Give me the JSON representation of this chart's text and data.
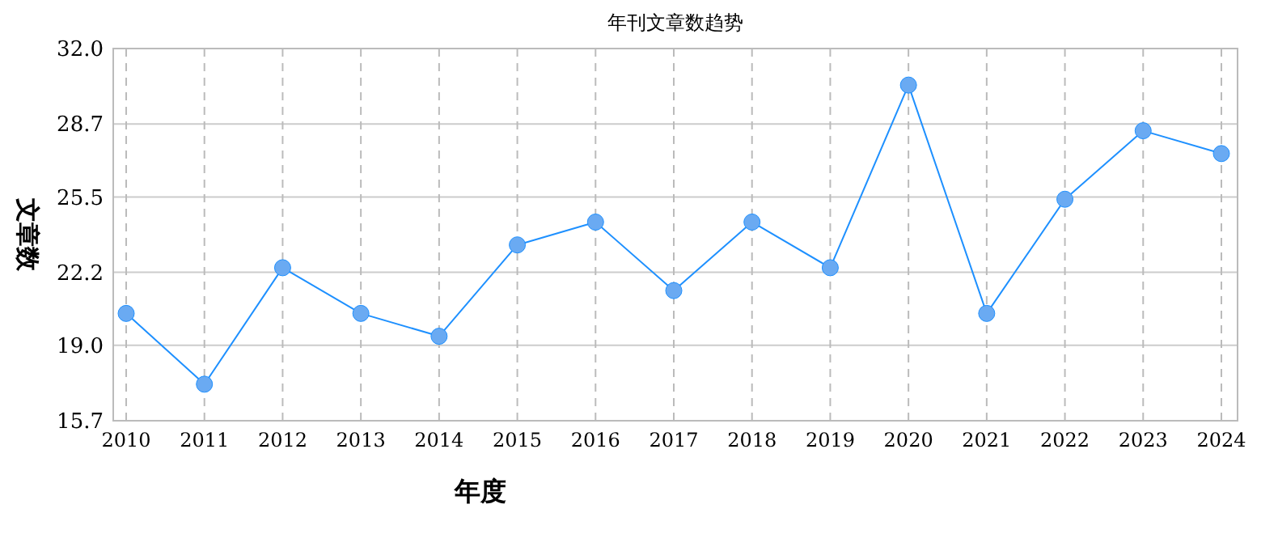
{
  "chart_data": {
    "type": "line",
    "title": "年刊文章数趋势",
    "xlabel": "年度",
    "ylabel": "文章数",
    "categories": [
      "2010",
      "2011",
      "2012",
      "2013",
      "2014",
      "2015",
      "2016",
      "2017",
      "2018",
      "2019",
      "2020",
      "2021",
      "2022",
      "2023",
      "2024"
    ],
    "series": [
      {
        "color": "#1e90ff",
        "values": [
          20.4,
          17.3,
          22.4,
          20.4,
          19.4,
          23.4,
          24.4,
          21.4,
          24.4,
          22.4,
          30.4,
          20.4,
          25.4,
          28.4,
          27.4
        ]
      }
    ],
    "ylim": [
      15.7,
      32.0
    ],
    "yticks": [
      {
        "value": 15.7,
        "label": "15.7"
      },
      {
        "value": 19.0,
        "label": "19.0"
      },
      {
        "value": 22.2,
        "label": "22.2"
      },
      {
        "value": 25.5,
        "label": "25.5"
      },
      {
        "value": 28.7,
        "label": "28.7"
      },
      {
        "value": 32.0,
        "label": "32.0"
      }
    ],
    "grid": true,
    "marker": "circle",
    "line_style": "solid"
  }
}
